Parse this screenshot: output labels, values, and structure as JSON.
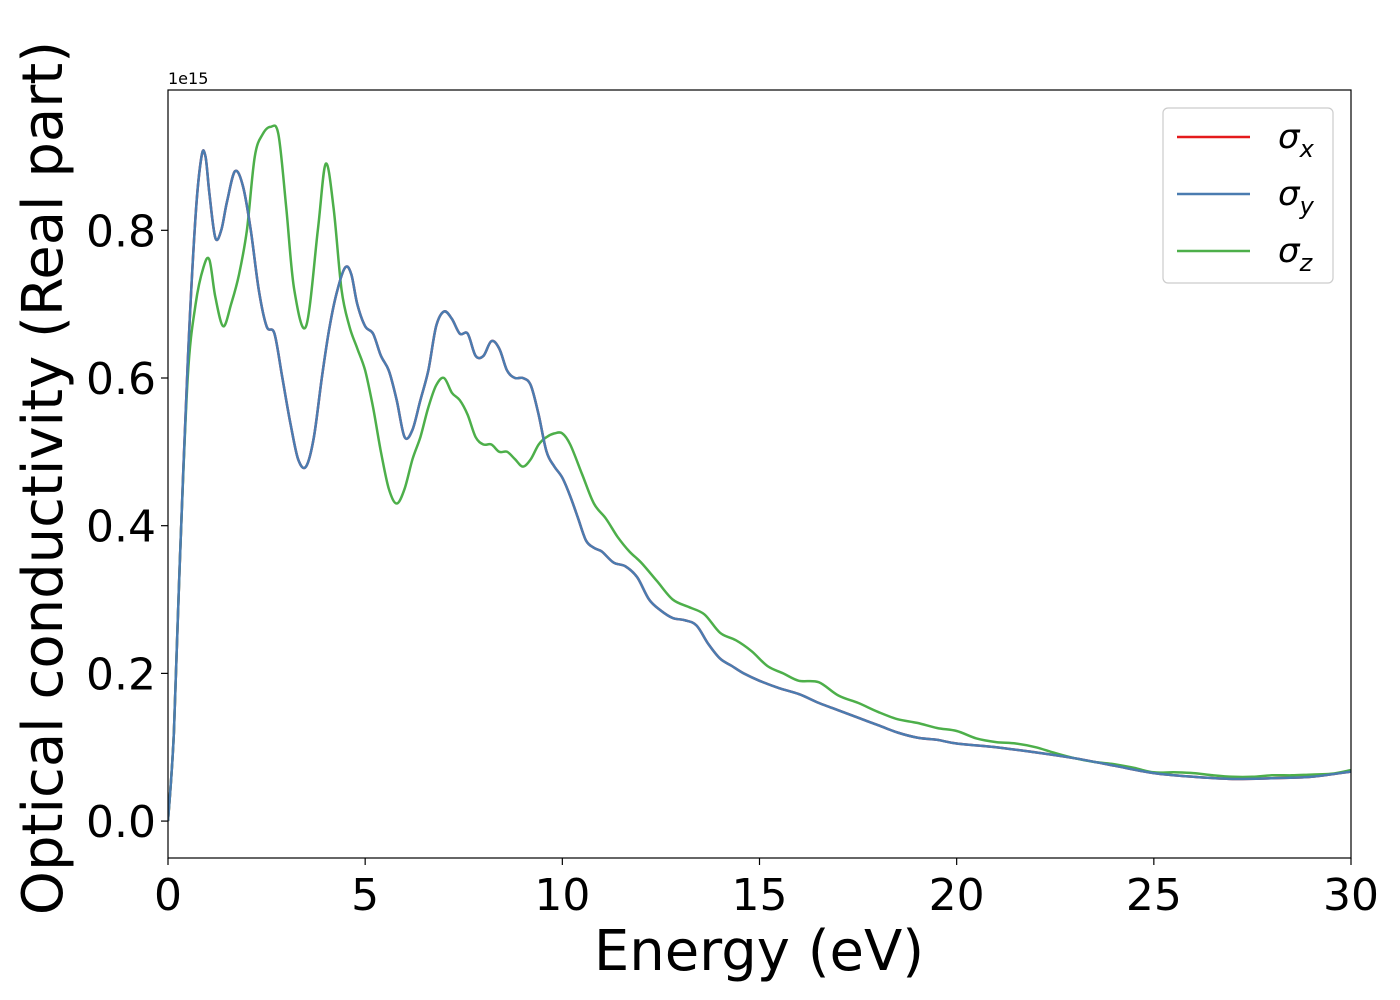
{
  "chart_data": {
    "type": "line",
    "xlabel": "Energy (eV)",
    "ylabel": "Optical conductivity (Real part)",
    "y_offset_text": "1e15",
    "xlim": [
      0,
      30
    ],
    "ylim": [
      -0.05,
      0.99
    ],
    "xticks": [
      0,
      5,
      10,
      15,
      20,
      25,
      30
    ],
    "xtick_labels": [
      "0",
      "5",
      "10",
      "15",
      "20",
      "25",
      "30"
    ],
    "yticks": [
      0.0,
      0.2,
      0.4,
      0.6,
      0.8
    ],
    "ytick_labels": [
      "0.0",
      "0.2",
      "0.4",
      "0.6",
      "0.8"
    ],
    "grid": false,
    "legend_position": "top-right",
    "series": [
      {
        "name": "σx",
        "symbol": "σ",
        "subscript": "x",
        "color": "#e41a1c",
        "x": [
          0,
          0.15,
          0.3,
          0.5,
          0.7,
          0.85,
          0.95,
          1.05,
          1.2,
          1.35,
          1.5,
          1.7,
          1.9,
          2.1,
          2.3,
          2.5,
          2.7,
          2.9,
          3.1,
          3.3,
          3.5,
          3.7,
          3.9,
          4.1,
          4.3,
          4.5,
          4.65,
          4.8,
          5.0,
          5.2,
          5.4,
          5.6,
          5.8,
          6.0,
          6.2,
          6.4,
          6.6,
          6.8,
          7.0,
          7.2,
          7.4,
          7.6,
          7.8,
          8.0,
          8.2,
          8.4,
          8.6,
          8.8,
          9.0,
          9.2,
          9.4,
          9.6,
          9.8,
          10.0,
          10.2,
          10.4,
          10.6,
          10.8,
          11.0,
          11.3,
          11.6,
          11.9,
          12.2,
          12.5,
          12.8,
          13.1,
          13.4,
          13.7,
          14.0,
          14.3,
          14.6,
          15.0,
          15.5,
          16.0,
          16.5,
          17.0,
          17.5,
          18.0,
          18.5,
          19.0,
          19.5,
          20.0,
          21.0,
          22.0,
          23.0,
          24.0,
          25.0,
          26.0,
          27.0,
          28.0,
          29.0,
          30.0
        ],
        "y": [
          0.0,
          0.12,
          0.35,
          0.62,
          0.82,
          0.9,
          0.9,
          0.85,
          0.79,
          0.8,
          0.84,
          0.88,
          0.86,
          0.8,
          0.72,
          0.67,
          0.66,
          0.6,
          0.54,
          0.49,
          0.48,
          0.52,
          0.6,
          0.67,
          0.72,
          0.75,
          0.74,
          0.7,
          0.67,
          0.66,
          0.63,
          0.61,
          0.57,
          0.52,
          0.53,
          0.57,
          0.61,
          0.67,
          0.69,
          0.68,
          0.66,
          0.66,
          0.63,
          0.63,
          0.65,
          0.64,
          0.61,
          0.6,
          0.6,
          0.59,
          0.55,
          0.5,
          0.48,
          0.465,
          0.44,
          0.41,
          0.38,
          0.37,
          0.365,
          0.35,
          0.345,
          0.33,
          0.3,
          0.285,
          0.275,
          0.272,
          0.265,
          0.24,
          0.22,
          0.21,
          0.2,
          0.19,
          0.18,
          0.172,
          0.16,
          0.15,
          0.14,
          0.13,
          0.12,
          0.113,
          0.11,
          0.105,
          0.1,
          0.093,
          0.085,
          0.075,
          0.065,
          0.06,
          0.057,
          0.058,
          0.06,
          0.067
        ]
      },
      {
        "name": "σy",
        "symbol": "σ",
        "subscript": "y",
        "color": "#4a7cb0",
        "x": [
          0,
          0.15,
          0.3,
          0.5,
          0.7,
          0.85,
          0.95,
          1.05,
          1.2,
          1.35,
          1.5,
          1.7,
          1.9,
          2.1,
          2.3,
          2.5,
          2.7,
          2.9,
          3.1,
          3.3,
          3.5,
          3.7,
          3.9,
          4.1,
          4.3,
          4.5,
          4.65,
          4.8,
          5.0,
          5.2,
          5.4,
          5.6,
          5.8,
          6.0,
          6.2,
          6.4,
          6.6,
          6.8,
          7.0,
          7.2,
          7.4,
          7.6,
          7.8,
          8.0,
          8.2,
          8.4,
          8.6,
          8.8,
          9.0,
          9.2,
          9.4,
          9.6,
          9.8,
          10.0,
          10.2,
          10.4,
          10.6,
          10.8,
          11.0,
          11.3,
          11.6,
          11.9,
          12.2,
          12.5,
          12.8,
          13.1,
          13.4,
          13.7,
          14.0,
          14.3,
          14.6,
          15.0,
          15.5,
          16.0,
          16.5,
          17.0,
          17.5,
          18.0,
          18.5,
          19.0,
          19.5,
          20.0,
          21.0,
          22.0,
          23.0,
          24.0,
          25.0,
          26.0,
          27.0,
          28.0,
          29.0,
          30.0
        ],
        "y": [
          0.0,
          0.12,
          0.35,
          0.62,
          0.82,
          0.9,
          0.9,
          0.85,
          0.79,
          0.8,
          0.84,
          0.88,
          0.86,
          0.8,
          0.72,
          0.67,
          0.66,
          0.6,
          0.54,
          0.49,
          0.48,
          0.52,
          0.6,
          0.67,
          0.72,
          0.75,
          0.74,
          0.7,
          0.67,
          0.66,
          0.63,
          0.61,
          0.57,
          0.52,
          0.53,
          0.57,
          0.61,
          0.67,
          0.69,
          0.68,
          0.66,
          0.66,
          0.63,
          0.63,
          0.65,
          0.64,
          0.61,
          0.6,
          0.6,
          0.59,
          0.55,
          0.5,
          0.48,
          0.465,
          0.44,
          0.41,
          0.38,
          0.37,
          0.365,
          0.35,
          0.345,
          0.33,
          0.3,
          0.285,
          0.275,
          0.272,
          0.265,
          0.24,
          0.22,
          0.21,
          0.2,
          0.19,
          0.18,
          0.172,
          0.16,
          0.15,
          0.14,
          0.13,
          0.12,
          0.113,
          0.11,
          0.105,
          0.1,
          0.093,
          0.085,
          0.075,
          0.065,
          0.06,
          0.057,
          0.058,
          0.06,
          0.067
        ]
      },
      {
        "name": "σz",
        "symbol": "σ",
        "subscript": "z",
        "color": "#4daf4a",
        "x": [
          0,
          0.15,
          0.3,
          0.5,
          0.7,
          0.9,
          1.05,
          1.2,
          1.4,
          1.6,
          1.8,
          2.0,
          2.2,
          2.4,
          2.6,
          2.8,
          3.0,
          3.2,
          3.5,
          3.8,
          4.0,
          4.2,
          4.4,
          4.6,
          4.8,
          5.0,
          5.2,
          5.4,
          5.6,
          5.8,
          6.0,
          6.2,
          6.4,
          6.6,
          6.8,
          7.0,
          7.2,
          7.4,
          7.6,
          7.8,
          8.0,
          8.2,
          8.4,
          8.6,
          8.8,
          9.0,
          9.2,
          9.4,
          9.6,
          9.8,
          10.0,
          10.2,
          10.5,
          10.8,
          11.1,
          11.4,
          11.7,
          12.0,
          12.4,
          12.8,
          13.2,
          13.6,
          14.0,
          14.4,
          14.8,
          15.2,
          15.6,
          16.0,
          16.5,
          17.0,
          17.5,
          18.0,
          18.5,
          19.0,
          19.5,
          20.0,
          20.5,
          21.0,
          21.5,
          22.0,
          22.5,
          23.0,
          23.5,
          24.0,
          24.5,
          25.0,
          25.5,
          26.0,
          26.5,
          27.0,
          27.5,
          28.0,
          28.5,
          29.0,
          29.5,
          30.0
        ],
        "y": [
          0.0,
          0.12,
          0.35,
          0.6,
          0.7,
          0.75,
          0.76,
          0.71,
          0.67,
          0.7,
          0.74,
          0.8,
          0.9,
          0.93,
          0.94,
          0.93,
          0.83,
          0.72,
          0.67,
          0.8,
          0.89,
          0.83,
          0.72,
          0.67,
          0.64,
          0.61,
          0.56,
          0.5,
          0.45,
          0.43,
          0.45,
          0.49,
          0.52,
          0.56,
          0.59,
          0.6,
          0.58,
          0.57,
          0.55,
          0.52,
          0.51,
          0.51,
          0.5,
          0.5,
          0.49,
          0.48,
          0.49,
          0.51,
          0.52,
          0.525,
          0.525,
          0.51,
          0.47,
          0.43,
          0.41,
          0.385,
          0.365,
          0.35,
          0.325,
          0.3,
          0.29,
          0.28,
          0.255,
          0.245,
          0.23,
          0.21,
          0.2,
          0.19,
          0.188,
          0.17,
          0.16,
          0.148,
          0.138,
          0.133,
          0.126,
          0.122,
          0.112,
          0.107,
          0.105,
          0.1,
          0.092,
          0.085,
          0.08,
          0.077,
          0.072,
          0.066,
          0.066,
          0.065,
          0.062,
          0.06,
          0.06,
          0.062,
          0.062,
          0.063,
          0.064,
          0.069
        ]
      }
    ]
  }
}
